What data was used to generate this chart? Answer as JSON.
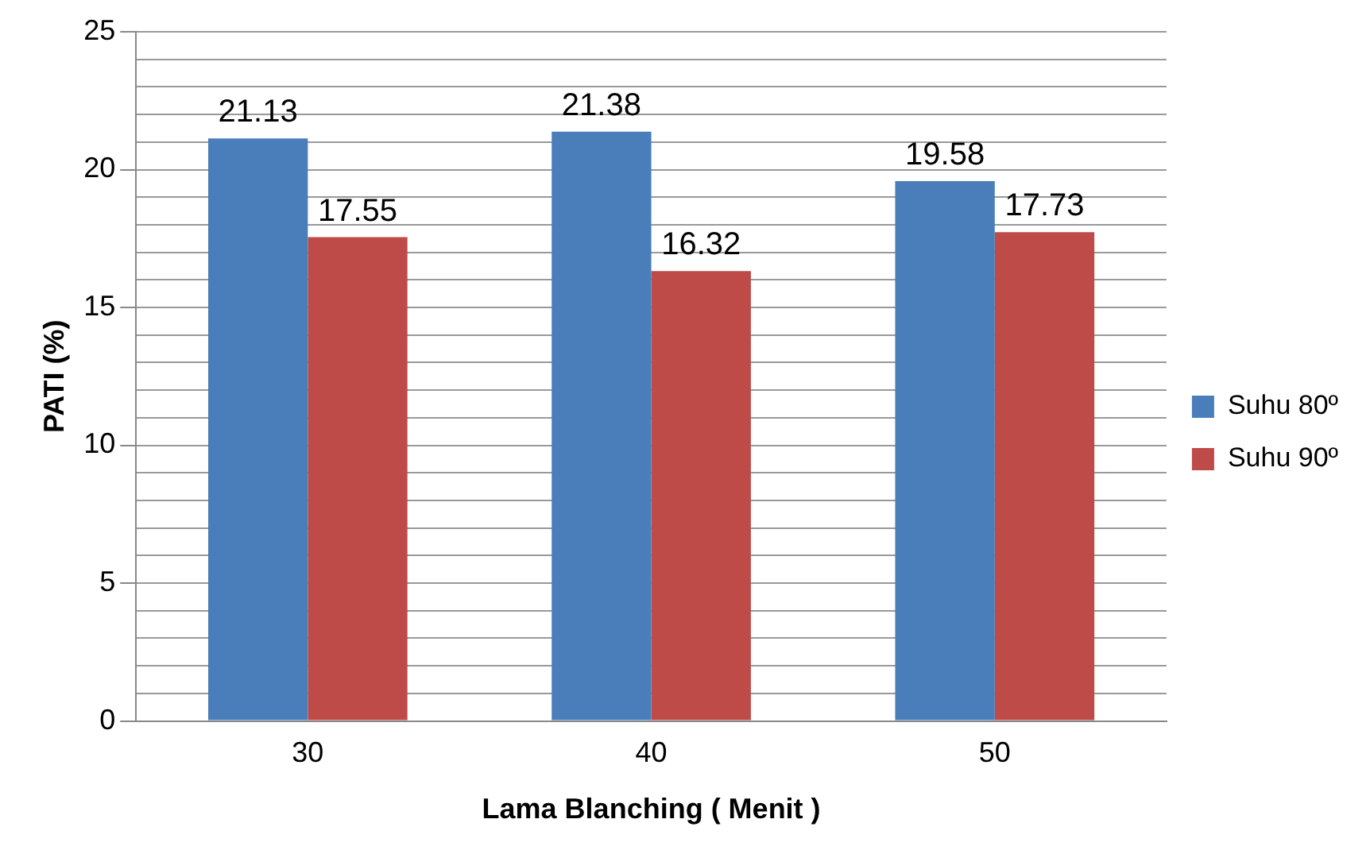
{
  "chart_data": {
    "type": "bar",
    "xlabel": "Lama Blanching ( Menit )",
    "ylabel": "PATI (%)",
    "categories": [
      "30",
      "40",
      "50"
    ],
    "series": [
      {
        "name": "Suhu 80º",
        "color": "#4a7ebb",
        "values": [
          21.13,
          21.38,
          19.58
        ]
      },
      {
        "name": "Suhu 90º",
        "color": "#be4b48",
        "values": [
          17.55,
          16.32,
          17.73
        ]
      }
    ],
    "ylim": [
      0,
      25
    ],
    "yticks": [
      0,
      {
        "value": 1,
        "label": null
      },
      {
        "value": 2,
        "label": null
      },
      {
        "value": 3,
        "label": null
      },
      {
        "value": 4,
        "label": null
      },
      5,
      {
        "value": 6,
        "label": null
      },
      {
        "value": 7,
        "label": null
      },
      {
        "value": 8,
        "label": null
      },
      {
        "value": 9,
        "label": null
      },
      10,
      {
        "value": 11,
        "label": null
      },
      {
        "value": 12,
        "label": null
      },
      {
        "value": 13,
        "label": null
      },
      {
        "value": 14,
        "label": null
      },
      15,
      {
        "value": 16,
        "label": null
      },
      {
        "value": 17,
        "label": null
      },
      {
        "value": 18,
        "label": null
      },
      {
        "value": 19,
        "label": null
      },
      20,
      {
        "value": 21,
        "label": null
      },
      {
        "value": 22,
        "label": null
      },
      {
        "value": 23,
        "label": null
      },
      {
        "value": 24,
        "label": null
      },
      25
    ],
    "grid": "y",
    "legend": "right",
    "data_labels": true
  }
}
